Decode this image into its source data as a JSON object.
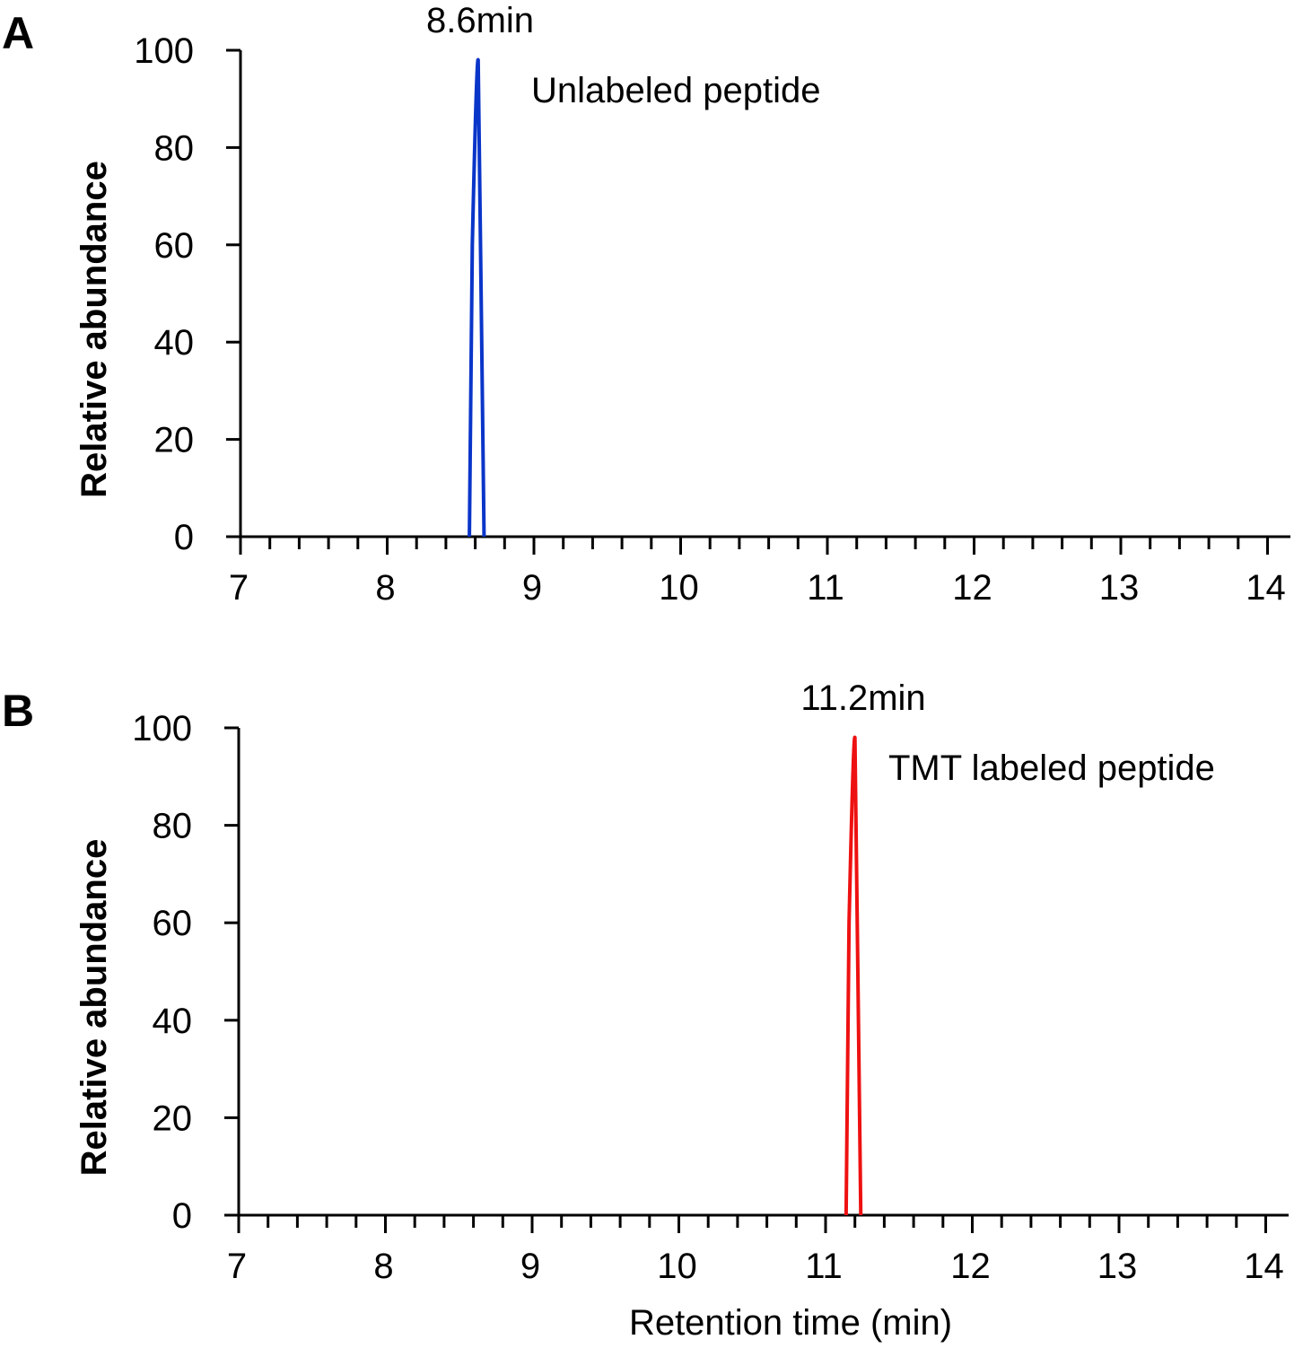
{
  "chart_data": [
    {
      "type": "line",
      "panel_label": "A",
      "title": "",
      "xlabel": "",
      "ylabel": "Relative abundance",
      "xlim": [
        7,
        14.2
      ],
      "ylim": [
        0,
        100
      ],
      "xticks": [
        7,
        8,
        9,
        10,
        11,
        12,
        13,
        14
      ],
      "yticks": [
        0,
        20,
        40,
        60,
        80,
        100
      ],
      "grid": false,
      "series": [
        {
          "color": "#0a35c9",
          "x": [
            8.56,
            8.58,
            8.6,
            8.62,
            8.64,
            8.66
          ],
          "y": [
            0,
            60,
            98,
            98,
            50,
            0
          ]
        }
      ],
      "annotations": [
        {
          "text": "8.6min",
          "x": 8.6,
          "y": 103
        },
        {
          "text": "Unlabeled peptide",
          "x": 10.2,
          "y": 92
        }
      ]
    },
    {
      "type": "line",
      "panel_label": "B",
      "title": "",
      "xlabel": "Retention time (min)",
      "ylabel": "Relative abundance",
      "xlim": [
        7,
        14.2
      ],
      "ylim": [
        0,
        100
      ],
      "xticks": [
        7,
        8,
        9,
        10,
        11,
        12,
        13,
        14
      ],
      "yticks": [
        0,
        20,
        40,
        60,
        80,
        100
      ],
      "grid": false,
      "series": [
        {
          "color": "#ee1111",
          "x": [
            11.14,
            11.16,
            11.18,
            11.2,
            11.22,
            11.24
          ],
          "y": [
            0,
            60,
            98,
            98,
            50,
            0
          ]
        }
      ],
      "annotations": [
        {
          "text": "11.2min",
          "x": 11.2,
          "y": 103
        },
        {
          "text": "TMT labeled peptide",
          "x": 12.7,
          "y": 92
        }
      ]
    }
  ]
}
